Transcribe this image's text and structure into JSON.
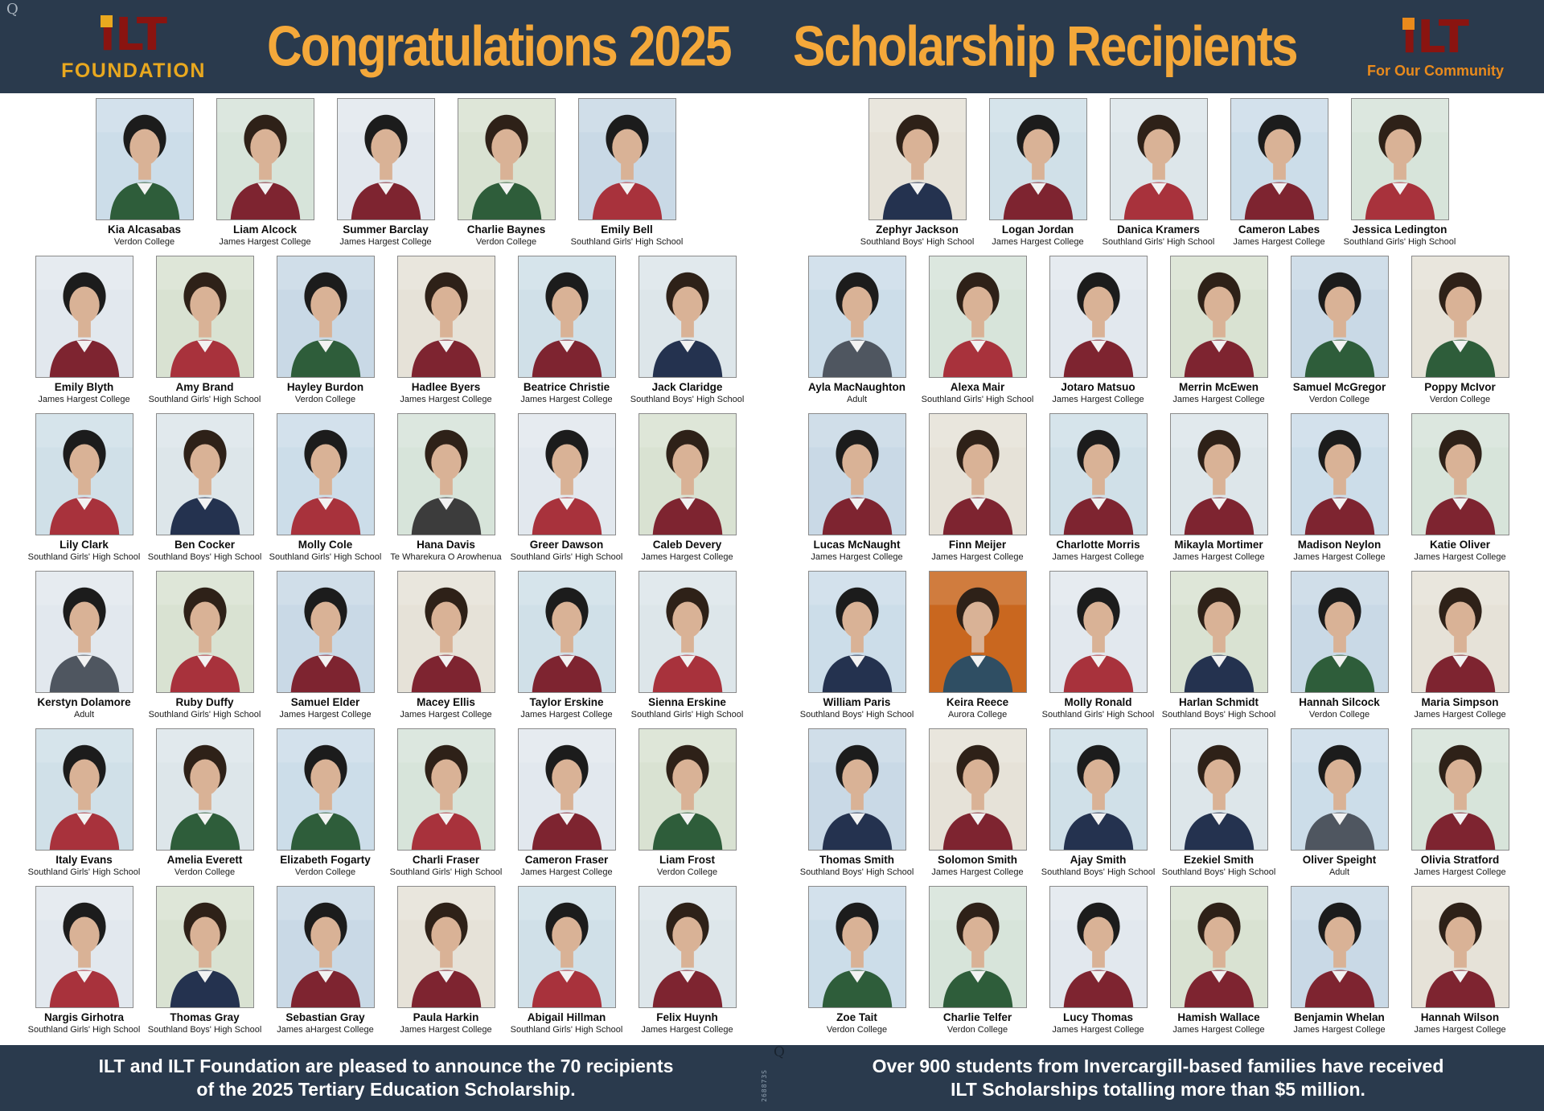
{
  "page": {
    "corner_mark_top": "Q",
    "corner_mark_bottom": "Q",
    "side_code": "268873S"
  },
  "header": {
    "title_left": "Congratulations 2025",
    "title_right": "Scholarship Recipients",
    "logo_left": {
      "brand": "iLT",
      "subtitle": "FOUNDATION"
    },
    "logo_right": {
      "brand": "iLT",
      "subtitle": "For Our Community"
    },
    "colors": {
      "background": "#2a3a4d",
      "title": "#f4a83a",
      "brand_red": "#8a1410",
      "brand_gold": "#e9a81f",
      "brand_orange": "#e98a1c"
    }
  },
  "grid": {
    "rows": [
      {
        "left": [
          {
            "name": "Kia Alcasabas",
            "school": "Verdon College"
          },
          {
            "name": "Liam Alcock",
            "school": "James Hargest College"
          },
          {
            "name": "Summer Barclay",
            "school": "James Hargest College"
          },
          {
            "name": "Charlie Baynes",
            "school": "Verdon College"
          },
          {
            "name": "Emily Bell",
            "school": "Southland Girls' High School"
          }
        ],
        "right": [
          {
            "name": "Zephyr Jackson",
            "school": "Southland Boys' High School"
          },
          {
            "name": "Logan Jordan",
            "school": "James Hargest College"
          },
          {
            "name": "Danica Kramers",
            "school": "Southland Girls' High School"
          },
          {
            "name": "Cameron Labes",
            "school": "James Hargest College"
          },
          {
            "name": "Jessica Ledington",
            "school": "Southland Girls' High School"
          }
        ]
      },
      {
        "left": [
          {
            "name": "Emily Blyth",
            "school": "James Hargest College"
          },
          {
            "name": "Amy Brand",
            "school": "Southland Girls' High School"
          },
          {
            "name": "Hayley Burdon",
            "school": "Verdon College"
          },
          {
            "name": "Hadlee Byers",
            "school": "James Hargest College"
          },
          {
            "name": "Beatrice Christie",
            "school": "James Hargest College"
          },
          {
            "name": "Jack Claridge",
            "school": "Southland Boys' High School"
          }
        ],
        "right": [
          {
            "name": "Ayla MacNaughton",
            "school": "Adult"
          },
          {
            "name": "Alexa Mair",
            "school": "Southland Girls' High School"
          },
          {
            "name": "Jotaro Matsuo",
            "school": "James Hargest College"
          },
          {
            "name": "Merrin McEwen",
            "school": "James Hargest College"
          },
          {
            "name": "Samuel McGregor",
            "school": "Verdon College"
          },
          {
            "name": "Poppy McIvor",
            "school": "Verdon College"
          }
        ]
      },
      {
        "left": [
          {
            "name": "Lily Clark",
            "school": "Southland Girls' High School"
          },
          {
            "name": "Ben Cocker",
            "school": "Southland Boys' High School"
          },
          {
            "name": "Molly Cole",
            "school": "Southland Girls' High School"
          },
          {
            "name": "Hana Davis",
            "school": "Te Wharekura O Arowhenua"
          },
          {
            "name": "Greer Dawson",
            "school": "Southland Girls' High School"
          },
          {
            "name": "Caleb Devery",
            "school": "James Hargest College"
          }
        ],
        "right": [
          {
            "name": "Lucas McNaught",
            "school": "James Hargest College"
          },
          {
            "name": "Finn Meijer",
            "school": "James Hargest College"
          },
          {
            "name": "Charlotte Morris",
            "school": "James Hargest College"
          },
          {
            "name": "Mikayla Mortimer",
            "school": "James Hargest College"
          },
          {
            "name": "Madison Neylon",
            "school": "James Hargest College"
          },
          {
            "name": "Katie Oliver",
            "school": "James Hargest College"
          }
        ]
      },
      {
        "left": [
          {
            "name": "Kerstyn Dolamore",
            "school": "Adult"
          },
          {
            "name": "Ruby Duffy",
            "school": "Southland Girls' High School"
          },
          {
            "name": "Samuel Elder",
            "school": "James Hargest College"
          },
          {
            "name": "Macey Ellis",
            "school": "James Hargest College"
          },
          {
            "name": "Taylor Erskine",
            "school": "James Hargest College"
          },
          {
            "name": "Sienna Erskine",
            "school": "Southland Girls' High School"
          }
        ],
        "right": [
          {
            "name": "William Paris",
            "school": "Southland Boys' High School"
          },
          {
            "name": "Keira Reece",
            "school": "Aurora College",
            "bg": "#c9671f"
          },
          {
            "name": "Molly Ronald",
            "school": "Southland Girls' High School"
          },
          {
            "name": "Harlan Schmidt",
            "school": "Southland Boys' High School"
          },
          {
            "name": "Hannah Silcock",
            "school": "Verdon College"
          },
          {
            "name": "Maria Simpson",
            "school": "James Hargest College"
          }
        ]
      },
      {
        "left": [
          {
            "name": "Italy Evans",
            "school": "Southland Girls' High School"
          },
          {
            "name": "Amelia Everett",
            "school": "Verdon College"
          },
          {
            "name": "Elizabeth Fogarty",
            "school": "Verdon College"
          },
          {
            "name": "Charli Fraser",
            "school": "Southland Girls' High School"
          },
          {
            "name": "Cameron Fraser",
            "school": "James Hargest College"
          },
          {
            "name": "Liam Frost",
            "school": "Verdon College"
          }
        ],
        "right": [
          {
            "name": "Thomas Smith",
            "school": "Southland Boys' High School"
          },
          {
            "name": "Solomon Smith",
            "school": "James Hargest College"
          },
          {
            "name": "Ajay Smith",
            "school": "Southland Boys' High School"
          },
          {
            "name": "Ezekiel Smith",
            "school": "Southland Boys' High School"
          },
          {
            "name": "Oliver Speight",
            "school": "Adult"
          },
          {
            "name": "Olivia Stratford",
            "school": "James Hargest College"
          }
        ]
      },
      {
        "left": [
          {
            "name": "Nargis Girhotra",
            "school": "Southland Girls' High School"
          },
          {
            "name": "Thomas Gray",
            "school": "Southland Boys' High School"
          },
          {
            "name": "Sebastian Gray",
            "school": "James aHargest College"
          },
          {
            "name": "Paula Harkin",
            "school": "James Hargest College"
          },
          {
            "name": "Abigail Hillman",
            "school": "Southland Girls' High School"
          },
          {
            "name": "Felix Huynh",
            "school": "James Hargest College"
          }
        ],
        "right": [
          {
            "name": "Zoe Tait",
            "school": "Verdon College"
          },
          {
            "name": "Charlie Telfer",
            "school": "Verdon College"
          },
          {
            "name": "Lucy Thomas",
            "school": "James Hargest College"
          },
          {
            "name": "Hamish Wallace",
            "school": "James Hargest College"
          },
          {
            "name": "Benjamin Whelan",
            "school": "James Hargest College"
          },
          {
            "name": "Hannah Wilson",
            "school": "James Hargest College"
          }
        ]
      }
    ]
  },
  "footer": {
    "left_text": "ILT and ILT Foundation are pleased to announce the 70 recipients of the 2025 Tertiary Education Scholarship.",
    "right_text": "Over 900 students from Invercargill-based families have received ILT Scholarships totalling more than $5 million."
  },
  "photo_style": {
    "skin": "#d9b296",
    "backgrounds": [
      "#ccdde9",
      "#d7e4da",
      "#e2e8ee",
      "#d9e2d2",
      "#c9d9e6",
      "#e6e2d8",
      "#d0e0e8",
      "#dde6ea"
    ],
    "hair_colors": [
      "#3a2a1e",
      "#1c1c1c",
      "#6b4326",
      "#b07a3c",
      "#2e2118",
      "#4a342a"
    ],
    "school_jacket_colors": {
      "James Hargest College": "#7e2430",
      "James aHargest College": "#7e2430",
      "Verdon College": "#2e5d3a",
      "Southland Girls' High School": "#a8323c",
      "Southland Boys' High School": "#24324f",
      "Te Wharekura O Arowhenua": "#3c3c3c",
      "Aurora College": "#2f4e63",
      "Adult": "#4f5660"
    }
  }
}
